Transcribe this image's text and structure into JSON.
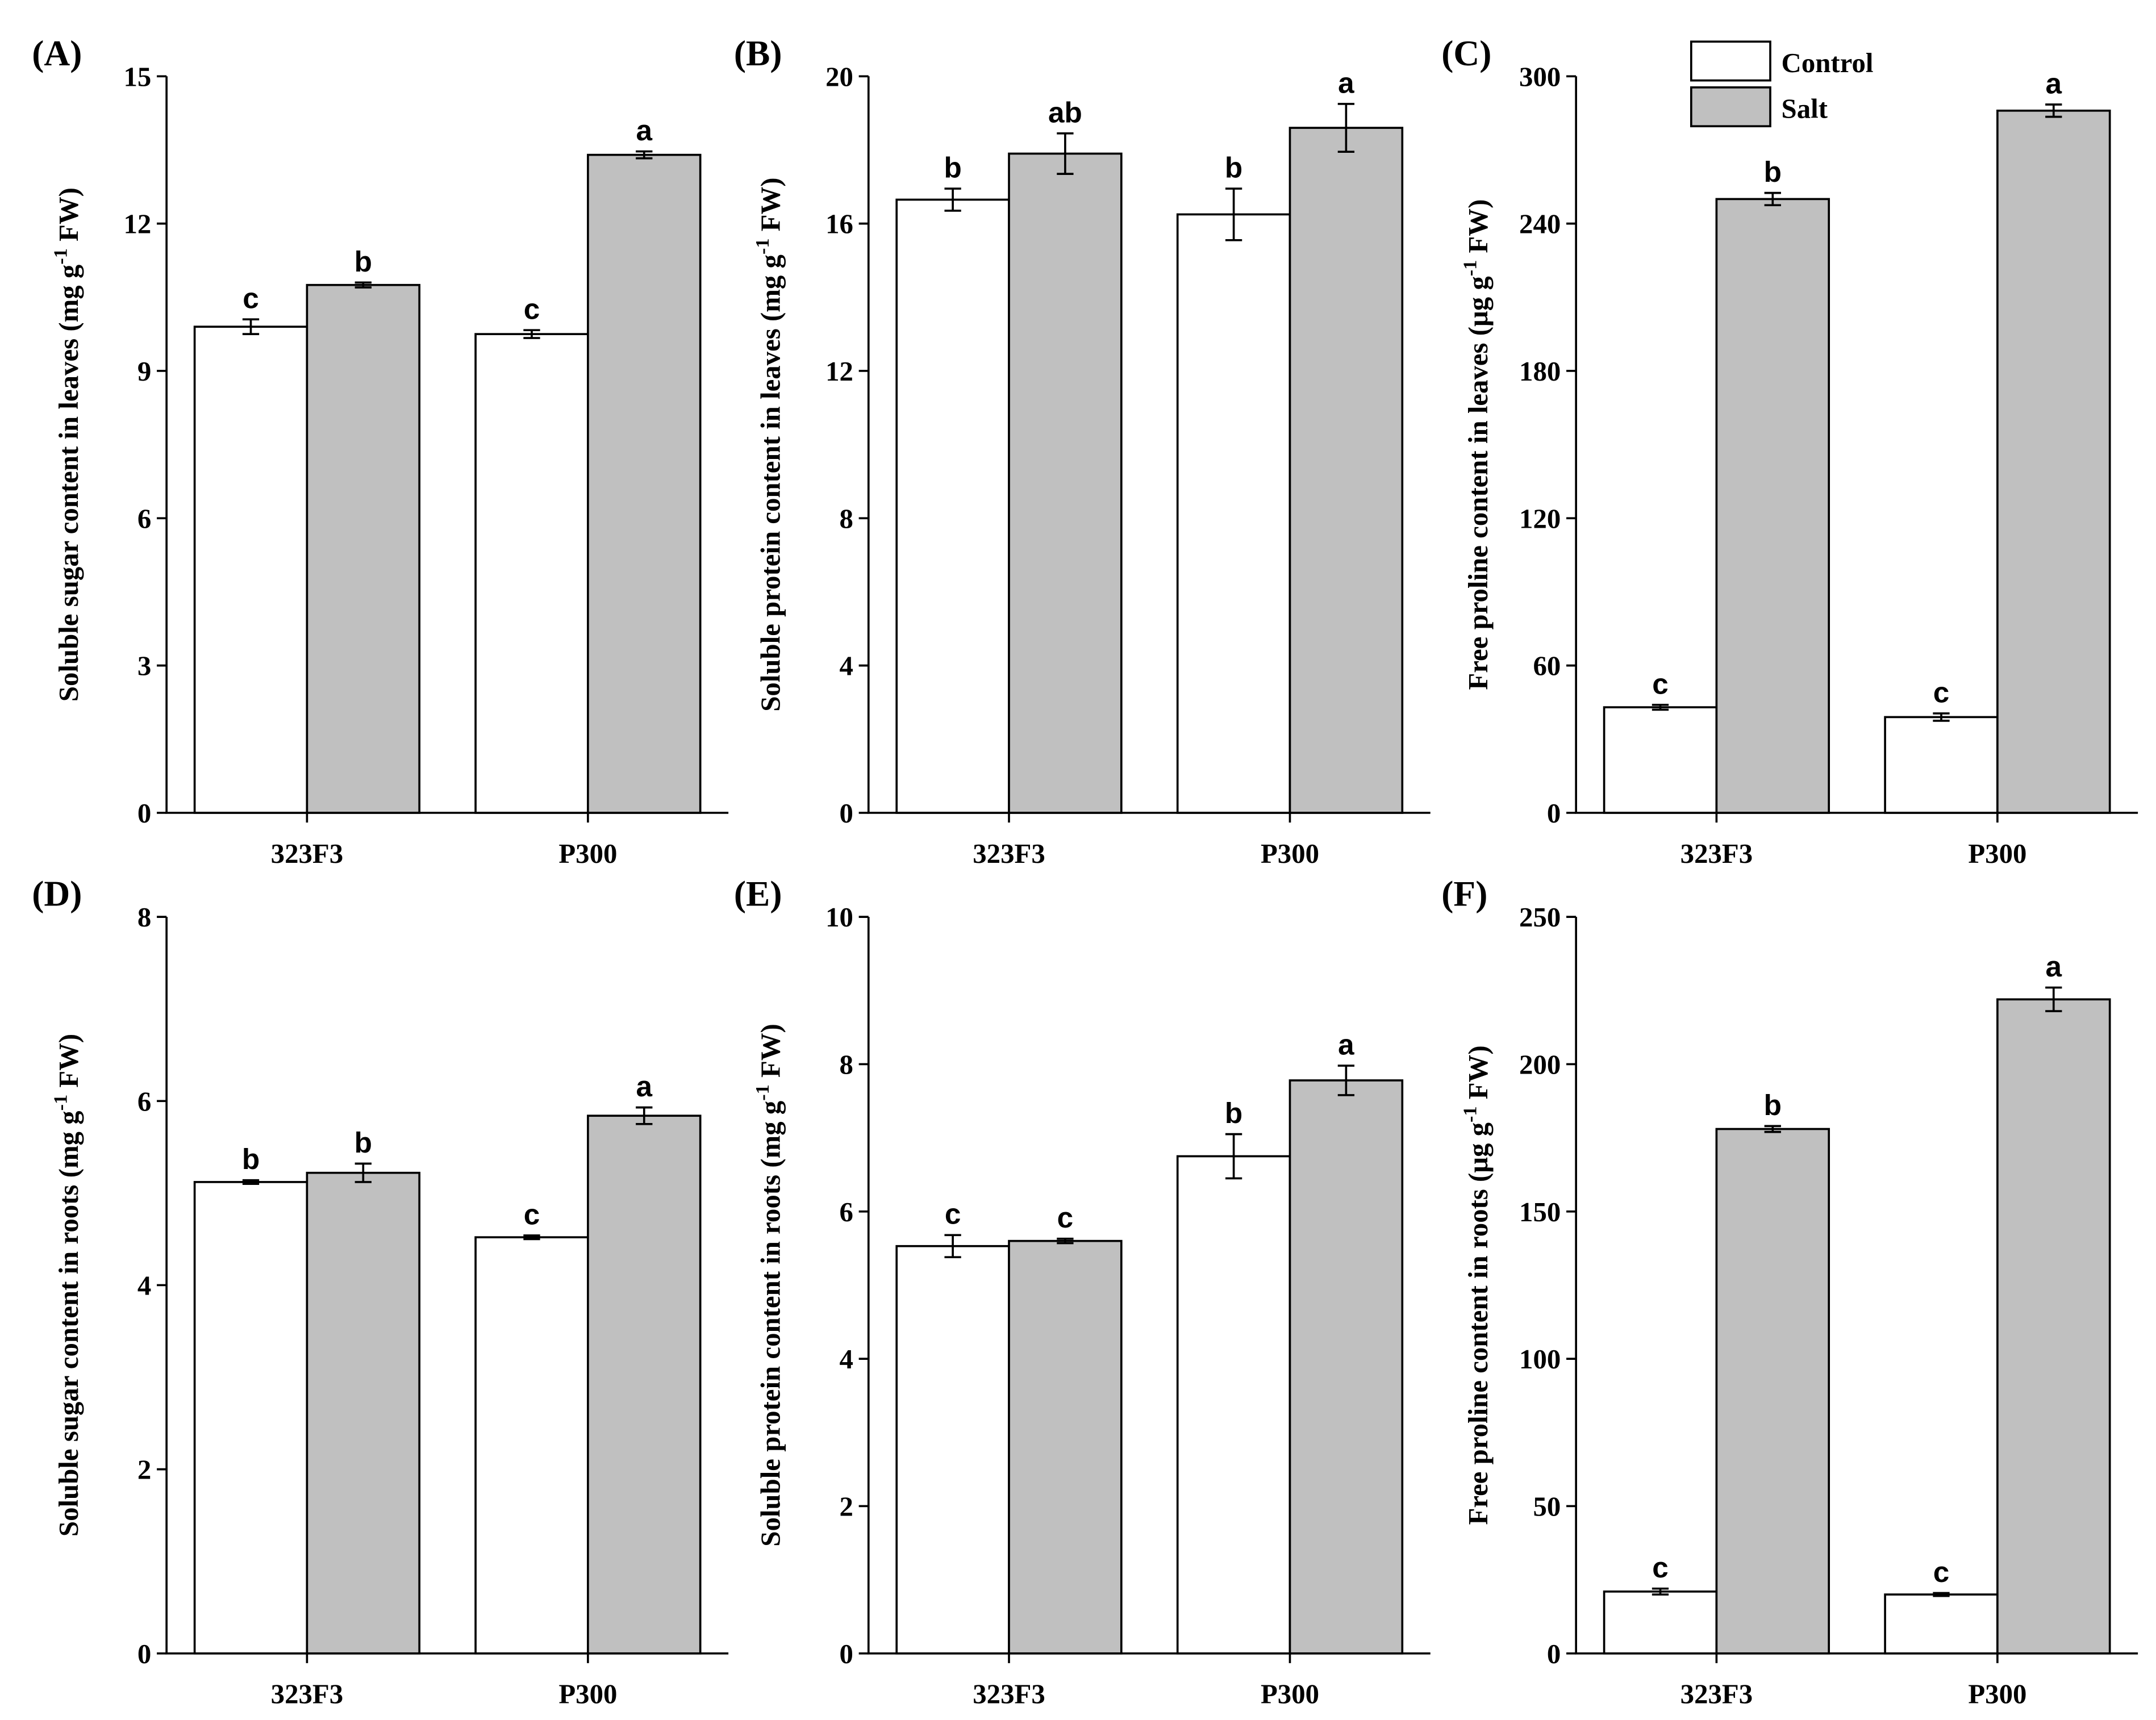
{
  "chart_data": [
    {
      "type": "bar",
      "panel": "(A)",
      "ylabel": [
        "Soluble sugar content in leaves (mg g",
        "-1",
        " FW)"
      ],
      "categories": [
        "323F3",
        "P300"
      ],
      "ylim": [
        0,
        15
      ],
      "yticks": [
        0,
        3,
        6,
        9,
        12,
        15
      ],
      "series": [
        {
          "color": "#ffffff",
          "values": [
            9.9,
            9.75
          ],
          "errors": [
            0.15,
            0.08
          ],
          "letters": [
            "c",
            "c"
          ]
        },
        {
          "color": "#c0c0c0",
          "values": [
            10.75,
            13.4
          ],
          "errors": [
            0.05,
            0.07
          ],
          "letters": [
            "b",
            "a"
          ]
        }
      ]
    },
    {
      "type": "bar",
      "panel": "(B)",
      "ylabel": [
        "Soluble protein content in leaves (mg g",
        "-1",
        " FW)"
      ],
      "categories": [
        "323F3",
        "P300"
      ],
      "ylim": [
        0,
        20
      ],
      "yticks": [
        0,
        4,
        8,
        12,
        16,
        20
      ],
      "series": [
        {
          "color": "#ffffff",
          "values": [
            16.65,
            16.25
          ],
          "errors": [
            0.3,
            0.7
          ],
          "letters": [
            "b",
            "b"
          ]
        },
        {
          "color": "#c0c0c0",
          "values": [
            17.9,
            18.6
          ],
          "errors": [
            0.55,
            0.65
          ],
          "letters": [
            "ab",
            "a"
          ]
        }
      ]
    },
    {
      "type": "bar",
      "panel": "(C)",
      "ylabel": [
        "Free proline content in leaves (μg g",
        "-1",
        " FW)"
      ],
      "categories": [
        "323F3",
        "P300"
      ],
      "ylim": [
        0,
        300
      ],
      "yticks": [
        0,
        60,
        120,
        180,
        240,
        300
      ],
      "legend": true,
      "series": [
        {
          "name": "Control",
          "color": "#ffffff",
          "values": [
            43,
            39
          ],
          "errors": [
            1,
            1.5
          ],
          "letters": [
            "c",
            "c"
          ]
        },
        {
          "name": "Salt",
          "color": "#c0c0c0",
          "values": [
            250,
            286
          ],
          "errors": [
            2.5,
            2.5
          ],
          "letters": [
            "b",
            "a"
          ]
        }
      ]
    },
    {
      "type": "bar",
      "panel": "(D)",
      "ylabel": [
        "Soluble sugar content in roots (mg g",
        "-1",
        " FW)"
      ],
      "categories": [
        "323F3",
        "P300"
      ],
      "ylim": [
        0,
        8
      ],
      "yticks": [
        0,
        2,
        4,
        6,
        8
      ],
      "series": [
        {
          "color": "#ffffff",
          "values": [
            5.12,
            4.52
          ],
          "errors": [
            0.02,
            0.02
          ],
          "letters": [
            "b",
            "c"
          ]
        },
        {
          "color": "#c0c0c0",
          "values": [
            5.22,
            5.84
          ],
          "errors": [
            0.1,
            0.09
          ],
          "letters": [
            "b",
            "a"
          ]
        }
      ]
    },
    {
      "type": "bar",
      "panel": "(E)",
      "ylabel": [
        "Soluble protein content in roots (mg g",
        "-1",
        " FW)"
      ],
      "categories": [
        "323F3",
        "P300"
      ],
      "ylim": [
        0,
        10
      ],
      "yticks": [
        0,
        2,
        4,
        6,
        8,
        10
      ],
      "series": [
        {
          "color": "#ffffff",
          "values": [
            5.53,
            6.75
          ],
          "errors": [
            0.15,
            0.3
          ],
          "letters": [
            "c",
            "b"
          ]
        },
        {
          "color": "#c0c0c0",
          "values": [
            5.6,
            7.78
          ],
          "errors": [
            0.03,
            0.2
          ],
          "letters": [
            "c",
            "a"
          ]
        }
      ]
    },
    {
      "type": "bar",
      "panel": "(F)",
      "ylabel": [
        "Free proline content in roots (μg g",
        "-1",
        " FW)"
      ],
      "categories": [
        "323F3",
        "P300"
      ],
      "ylim": [
        0,
        250
      ],
      "yticks": [
        0,
        50,
        100,
        150,
        200,
        250
      ],
      "series": [
        {
          "color": "#ffffff",
          "values": [
            21,
            20
          ],
          "errors": [
            1,
            0.5
          ],
          "letters": [
            "c",
            "c"
          ]
        },
        {
          "color": "#c0c0c0",
          "values": [
            178,
            222
          ],
          "errors": [
            1,
            4
          ],
          "letters": [
            "b",
            "a"
          ]
        }
      ]
    }
  ]
}
